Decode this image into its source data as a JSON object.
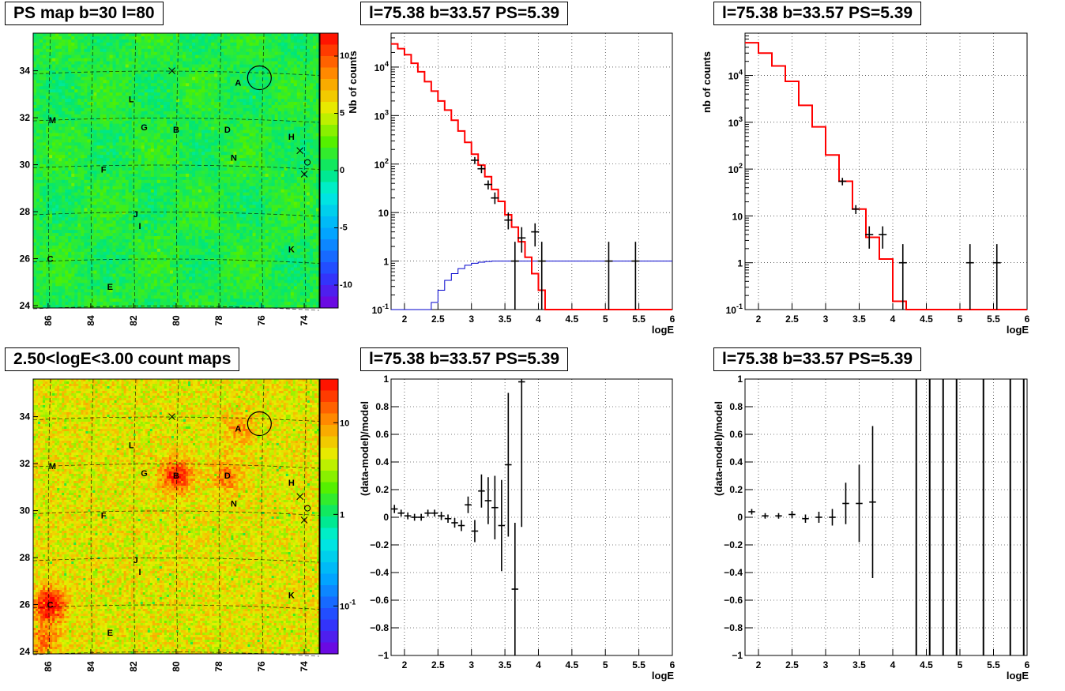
{
  "titles": {
    "map_top": "PS map b=30 l=80",
    "map_bottom": "2.50<logE<3.00 count maps",
    "spec_top_mid": "l=75.38 b=33.57 PS=5.39",
    "spec_top_right": "l=75.38 b=33.57 PS=5.39",
    "res_bottom_mid": "l=75.38 b=33.57 PS=5.39",
    "res_bottom_right": "l=75.38 b=33.57 PS=5.39"
  },
  "chart_data": [
    {
      "type": "heatmap",
      "title": "PS map b=30 l=80",
      "x_ticks": [
        "86",
        "84",
        "82",
        "80",
        "78",
        "76",
        "74"
      ],
      "y_ticks": [
        "24",
        "26",
        "28",
        "30",
        "32",
        "34"
      ],
      "xlim": [
        86.7,
        73.3
      ],
      "ylim": [
        23.9,
        35.6
      ],
      "colorbar_ticks": [
        "10",
        "5",
        "0",
        "-5",
        "-10"
      ],
      "colorbar_range": [
        -12,
        12
      ],
      "sources": [
        {
          "label": "A",
          "x": 77.1,
          "y": 33.5
        },
        {
          "label": "L",
          "x": 82.1,
          "y": 32.8
        },
        {
          "label": "M",
          "x": 85.8,
          "y": 31.9
        },
        {
          "label": "G",
          "x": 81.5,
          "y": 31.6
        },
        {
          "label": "B",
          "x": 80.0,
          "y": 31.5
        },
        {
          "label": "D",
          "x": 77.6,
          "y": 31.5
        },
        {
          "label": "H",
          "x": 74.6,
          "y": 31.2
        },
        {
          "label": "N",
          "x": 77.3,
          "y": 30.3
        },
        {
          "label": "F",
          "x": 83.4,
          "y": 29.8
        },
        {
          "label": "J",
          "x": 81.9,
          "y": 27.9
        },
        {
          "label": "I",
          "x": 81.7,
          "y": 27.4
        },
        {
          "label": "C",
          "x": 85.9,
          "y": 26.0
        },
        {
          "label": "K",
          "x": 74.6,
          "y": 26.4
        },
        {
          "label": "E",
          "x": 83.1,
          "y": 24.8
        }
      ]
    },
    {
      "type": "heatmap",
      "title": "2.50<logE<3.00 count maps",
      "x_ticks": [
        "86",
        "84",
        "82",
        "80",
        "78",
        "76",
        "74"
      ],
      "y_ticks": [
        "24",
        "26",
        "28",
        "30",
        "32",
        "34"
      ],
      "colorbar_ticks": [
        "10",
        "1",
        "10^-1"
      ],
      "colorbar_range": [
        0.03,
        30
      ]
    },
    {
      "type": "line",
      "title": "l=75.38 b=33.57 PS=5.39",
      "xlabel": "logE",
      "ylabel": "Nb of counts",
      "xlim": [
        1.8,
        6.0
      ],
      "ylim": [
        0.1,
        50000
      ],
      "log_y": true,
      "grid": true,
      "x_ticks": [
        "2",
        "2.5",
        "3",
        "3.5",
        "4",
        "4.5",
        "5",
        "5.5",
        "6"
      ],
      "y_ticks": [
        "10^-1",
        "1",
        "10",
        "10^2",
        "10^3",
        "10^4"
      ],
      "bin_width": 0.1,
      "model_bins_start": [
        1.8,
        1.9,
        2.0,
        2.1,
        2.2,
        2.3,
        2.4,
        2.5,
        2.6,
        2.7,
        2.8,
        2.9,
        3.0,
        3.1,
        3.2,
        3.3,
        3.4,
        3.5,
        3.6,
        3.7,
        3.8,
        3.9,
        4.0,
        4.1,
        4.2
      ],
      "model_red": [
        30000,
        24000,
        18000,
        12000,
        8000,
        5000,
        3200,
        2000,
        1300,
        800,
        480,
        280,
        160,
        95,
        55,
        30,
        17,
        9,
        5,
        2.5,
        1.2,
        0.55,
        0.25,
        0.1,
        0.1
      ],
      "model_blue": [
        0.1,
        0.1,
        0.1,
        0.1,
        0.1,
        0.1,
        0.14,
        0.25,
        0.4,
        0.55,
        0.7,
        0.82,
        0.9,
        0.95,
        0.98,
        1.0,
        1.0,
        1.0,
        1.0,
        1.0,
        1.0,
        1.0,
        1.0,
        1.0,
        1.0
      ],
      "data_points": [
        {
          "x": 3.05,
          "y": 120,
          "lo": 100,
          "hi": 140
        },
        {
          "x": 3.15,
          "y": 80,
          "lo": 65,
          "hi": 95
        },
        {
          "x": 3.25,
          "y": 38,
          "lo": 30,
          "hi": 46
        },
        {
          "x": 3.35,
          "y": 20,
          "lo": 15,
          "hi": 26
        },
        {
          "x": 3.55,
          "y": 7,
          "lo": 4.5,
          "hi": 10
        },
        {
          "x": 3.65,
          "y": 1,
          "lo": 0.1,
          "hi": 2.5
        },
        {
          "x": 3.75,
          "y": 3,
          "lo": 1.5,
          "hi": 5
        },
        {
          "x": 3.95,
          "y": 4,
          "lo": 2,
          "hi": 6
        },
        {
          "x": 4.05,
          "y": 1,
          "lo": 0.1,
          "hi": 2.5
        },
        {
          "x": 5.05,
          "y": 1,
          "lo": 0.1,
          "hi": 2.5
        },
        {
          "x": 5.45,
          "y": 1,
          "lo": 0.1,
          "hi": 2.5
        }
      ]
    },
    {
      "type": "line",
      "title": "l=75.38 b=33.57 PS=5.39",
      "xlabel": "logE",
      "ylabel": "nb of counts",
      "xlim": [
        1.8,
        6.0
      ],
      "ylim": [
        0.1,
        80000
      ],
      "log_y": true,
      "grid": true,
      "x_ticks": [
        "2",
        "2.5",
        "3",
        "3.5",
        "4",
        "4.5",
        "5",
        "5.5",
        "6"
      ],
      "y_ticks": [
        "10^-1",
        "1",
        "10",
        "10^2",
        "10^3",
        "10^4"
      ],
      "bin_width": 0.2,
      "model_bins_start": [
        1.8,
        2.0,
        2.2,
        2.4,
        2.6,
        2.8,
        3.0,
        3.2,
        3.4,
        3.6,
        3.8,
        4.0,
        4.2
      ],
      "model_red": [
        50000,
        30000,
        16000,
        7500,
        2300,
        800,
        200,
        55,
        14,
        3.5,
        1.2,
        0.15,
        0.1
      ],
      "data_points": [
        {
          "x": 3.25,
          "y": 55,
          "lo": 45,
          "hi": 65
        },
        {
          "x": 3.45,
          "y": 14,
          "lo": 11,
          "hi": 17
        },
        {
          "x": 3.65,
          "y": 4,
          "lo": 2,
          "hi": 6
        },
        {
          "x": 3.85,
          "y": 4,
          "lo": 2,
          "hi": 6
        },
        {
          "x": 4.15,
          "y": 1,
          "lo": 0.1,
          "hi": 2.5
        },
        {
          "x": 5.15,
          "y": 1,
          "lo": 0.1,
          "hi": 2.5
        },
        {
          "x": 5.55,
          "y": 1,
          "lo": 0.1,
          "hi": 2.5
        }
      ]
    },
    {
      "type": "scatter",
      "title": "l=75.38 b=33.57 PS=5.39",
      "xlabel": "logE",
      "ylabel": "(data-model)/model",
      "xlim": [
        1.8,
        6.0
      ],
      "ylim": [
        -1,
        1
      ],
      "grid": true,
      "x_ticks": [
        "2",
        "2.5",
        "3",
        "3.5",
        "4",
        "4.5",
        "5",
        "5.5",
        "6"
      ],
      "y_ticks": [
        "-1",
        "-0.8",
        "-0.6",
        "-0.4",
        "-0.2",
        "0",
        "0.2",
        "0.4",
        "0.6",
        "0.8",
        "1"
      ],
      "points": [
        {
          "x": 1.85,
          "y": 0.06,
          "err": 0.03
        },
        {
          "x": 1.95,
          "y": 0.03,
          "err": 0.025
        },
        {
          "x": 2.05,
          "y": 0.01,
          "err": 0.025
        },
        {
          "x": 2.15,
          "y": 0.0,
          "err": 0.025
        },
        {
          "x": 2.25,
          "y": 0.0,
          "err": 0.025
        },
        {
          "x": 2.35,
          "y": 0.03,
          "err": 0.025
        },
        {
          "x": 2.45,
          "y": 0.03,
          "err": 0.025
        },
        {
          "x": 2.55,
          "y": 0.01,
          "err": 0.03
        },
        {
          "x": 2.65,
          "y": -0.01,
          "err": 0.03
        },
        {
          "x": 2.75,
          "y": -0.04,
          "err": 0.035
        },
        {
          "x": 2.85,
          "y": -0.06,
          "err": 0.04
        },
        {
          "x": 2.95,
          "y": 0.09,
          "err": 0.06
        },
        {
          "x": 3.05,
          "y": -0.1,
          "err": 0.08
        },
        {
          "x": 3.15,
          "y": 0.19,
          "err": 0.12
        },
        {
          "x": 3.25,
          "y": 0.12,
          "err": 0.17
        },
        {
          "x": 3.35,
          "y": 0.07,
          "err": 0.23
        },
        {
          "x": 3.45,
          "y": -0.06,
          "err": 0.33
        },
        {
          "x": 3.55,
          "y": 0.38,
          "err": 0.52
        },
        {
          "x": 3.65,
          "y": -0.52,
          "err": 0.48
        },
        {
          "x": 3.75,
          "y": 0.98,
          "err": 1.05
        }
      ]
    },
    {
      "type": "scatter",
      "title": "l=75.38 b=33.57 PS=5.39",
      "xlabel": "logE",
      "ylabel": "(data-model)/model",
      "xlim": [
        1.8,
        6.0
      ],
      "ylim": [
        -1,
        1
      ],
      "grid": true,
      "x_ticks": [
        "2",
        "2.5",
        "3",
        "3.5",
        "4",
        "4.5",
        "5",
        "5.5",
        "6"
      ],
      "y_ticks": [
        "-1",
        "-0.8",
        "-0.6",
        "-0.4",
        "-0.2",
        "0",
        "0.2",
        "0.4",
        "0.6",
        "0.8",
        "1"
      ],
      "points": [
        {
          "x": 1.9,
          "y": 0.04,
          "err": 0.02
        },
        {
          "x": 2.1,
          "y": 0.01,
          "err": 0.02
        },
        {
          "x": 2.3,
          "y": 0.01,
          "err": 0.02
        },
        {
          "x": 2.5,
          "y": 0.02,
          "err": 0.025
        },
        {
          "x": 2.7,
          "y": -0.01,
          "err": 0.03
        },
        {
          "x": 2.9,
          "y": 0.0,
          "err": 0.04
        },
        {
          "x": 3.1,
          "y": 0.0,
          "err": 0.06
        },
        {
          "x": 3.3,
          "y": 0.1,
          "err": 0.15
        },
        {
          "x": 3.5,
          "y": 0.1,
          "err": 0.28
        },
        {
          "x": 3.7,
          "y": 0.11,
          "err": 0.55
        }
      ],
      "full_range_lines_x": [
        4.35,
        4.55,
        4.75,
        4.95,
        5.35,
        5.75,
        5.95
      ]
    }
  ]
}
